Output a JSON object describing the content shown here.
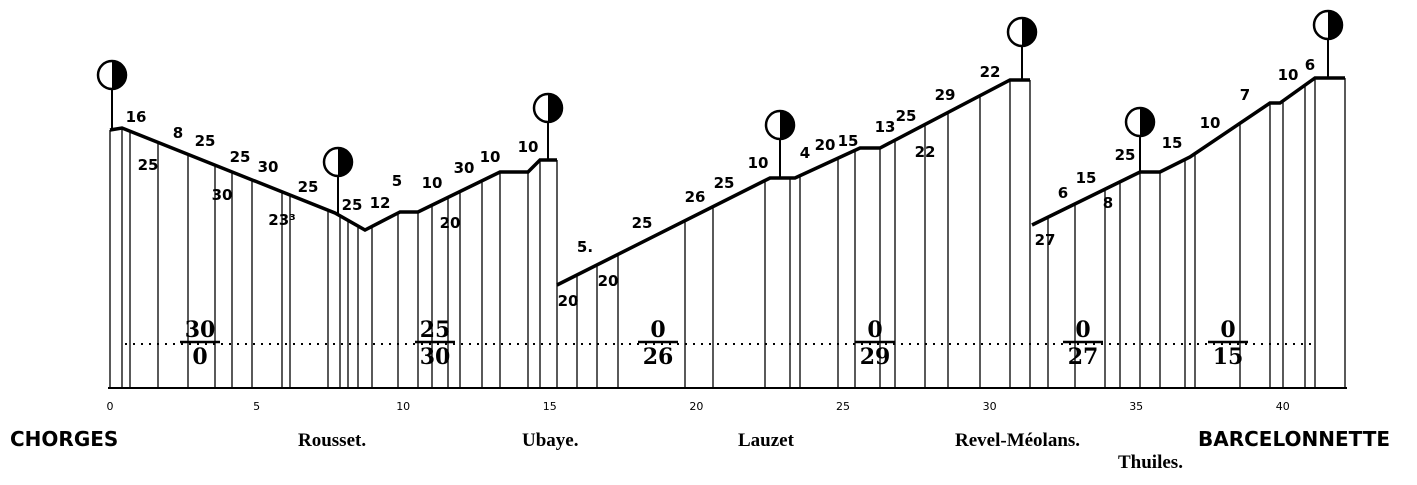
{
  "stations": [
    "CHORGES",
    "Rousset.",
    "Ubaye.",
    "Lauzet",
    "Revel-Méolans.",
    "Thuiles.",
    "BARCELONNETTE"
  ],
  "distance_ticks": [
    "0",
    "5",
    "10",
    "15",
    "20",
    "25",
    "30",
    "35",
    "40"
  ],
  "gradient_labels": [
    "16",
    "25",
    "8",
    "25",
    "30",
    "25",
    "30",
    "23³",
    "25",
    "25",
    "12",
    "5",
    "10",
    "30",
    "20",
    "10",
    "10",
    "5.",
    "20",
    "20",
    "25",
    "26",
    "25",
    "10",
    "4",
    "20",
    "15",
    "13",
    "25",
    "22",
    "29",
    "22",
    "27",
    "6",
    "15",
    "8",
    "25",
    "15",
    "10",
    "7",
    "10",
    "6"
  ],
  "fractions": [
    {
      "top": "30",
      "bottom": "0"
    },
    {
      "top": "25",
      "bottom": "30"
    },
    {
      "top": "0",
      "bottom": "26"
    },
    {
      "top": "0",
      "bottom": "29"
    },
    {
      "top": "0",
      "bottom": "27"
    },
    {
      "top": "0",
      "bottom": "15"
    }
  ]
}
